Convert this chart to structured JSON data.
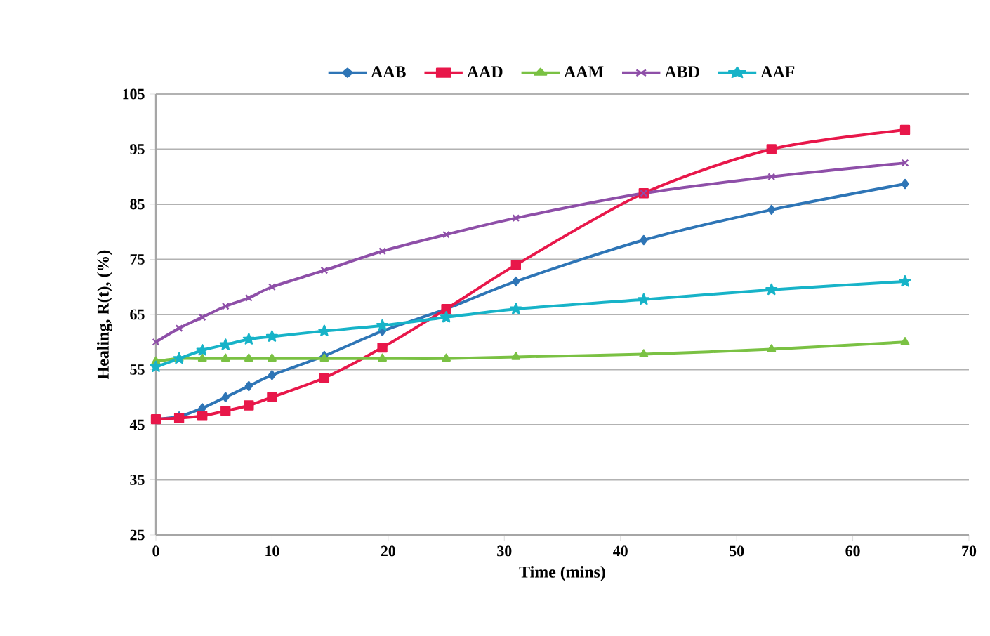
{
  "chart_data": {
    "type": "line",
    "xlabel": "Time (mins)",
    "ylabel": "Healing, R(t), (%)",
    "x": [
      0,
      2,
      4,
      6,
      8,
      10,
      14.5,
      19.5,
      25,
      31,
      42,
      53,
      64.5
    ],
    "xlim": [
      0,
      70
    ],
    "xticks": [
      0,
      10,
      20,
      30,
      40,
      50,
      60,
      70
    ],
    "ylim": [
      25,
      105
    ],
    "yticks": [
      25,
      35,
      45,
      55,
      65,
      75,
      85,
      95,
      105
    ],
    "grid": "y",
    "legend": "top",
    "series": [
      {
        "name": "AAB",
        "color": "#2e75b6",
        "marker": "diamond",
        "values": [
          46,
          46.5,
          48,
          50,
          52,
          54,
          57.5,
          62,
          66,
          71,
          78.5,
          84,
          88.7
        ]
      },
      {
        "name": "AAD",
        "color": "#e8174a",
        "marker": "square",
        "values": [
          46,
          46.2,
          46.6,
          47.5,
          48.5,
          50,
          53.5,
          59,
          66,
          74,
          87,
          95,
          98.5
        ]
      },
      {
        "name": "AAM",
        "color": "#7ac143",
        "marker": "triangle",
        "values": [
          56.5,
          57,
          57,
          57,
          57,
          57,
          57,
          57,
          57,
          57.3,
          57.8,
          58.7,
          60
        ]
      },
      {
        "name": "ABD",
        "color": "#8e4fa8",
        "marker": "cross",
        "values": [
          60,
          62.5,
          64.5,
          66.5,
          68,
          70,
          73,
          76.5,
          79.5,
          82.5,
          87,
          90,
          92.5
        ]
      },
      {
        "name": "AAF",
        "color": "#17b3c8",
        "marker": "star",
        "values": [
          55.5,
          57,
          58.5,
          59.5,
          60.5,
          61,
          62,
          63,
          64.5,
          66,
          67.7,
          69.5,
          71
        ]
      }
    ]
  }
}
